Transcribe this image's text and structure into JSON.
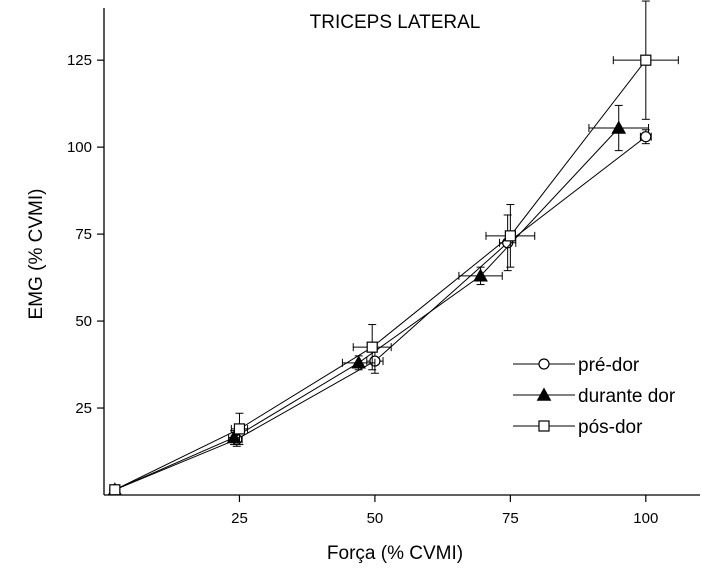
{
  "chart_data": {
    "type": "line",
    "title": "TRICEPS LATERAL",
    "xlabel": "Força (% CVMI)",
    "ylabel": "EMG (% CVMI)",
    "xlim": [
      0,
      110
    ],
    "ylim": [
      0,
      140
    ],
    "xticks": [
      25,
      50,
      75,
      100
    ],
    "yticks": [
      25,
      50,
      75,
      100,
      125
    ],
    "legend_position": "lower-right",
    "grid": false,
    "series": [
      {
        "name": "pré-dor",
        "marker": "open-circle",
        "points": [
          {
            "x": 2,
            "y": 1.5,
            "xerr": 0.5,
            "yerr": 1
          },
          {
            "x": 24.5,
            "y": 16,
            "xerr": 1,
            "yerr": 2
          },
          {
            "x": 50,
            "y": 38.5,
            "xerr": 1.5,
            "yerr": 3.5
          },
          {
            "x": 74.5,
            "y": 72.5,
            "xerr": 1.5,
            "yerr": 8
          },
          {
            "x": 100,
            "y": 103,
            "xerr": 1,
            "yerr": 2
          }
        ]
      },
      {
        "name": "durante dor",
        "marker": "filled-triangle",
        "points": [
          {
            "x": 2,
            "y": 1.5,
            "xerr": 0.5,
            "yerr": 1
          },
          {
            "x": 24,
            "y": 16.5,
            "xerr": 1,
            "yerr": 2
          },
          {
            "x": 47,
            "y": 38,
            "xerr": 3,
            "yerr": 2
          },
          {
            "x": 69.5,
            "y": 63,
            "xerr": 4,
            "yerr": 2.5
          },
          {
            "x": 95,
            "y": 105.5,
            "xerr": 5.5,
            "yerr": 6.5
          }
        ]
      },
      {
        "name": "pós-dor",
        "marker": "open-square",
        "points": [
          {
            "x": 2,
            "y": 1.5,
            "xerr": 0.5,
            "yerr": 1
          },
          {
            "x": 25,
            "y": 19,
            "xerr": 1.5,
            "yerr": 4.5
          },
          {
            "x": 49.5,
            "y": 42.5,
            "xerr": 3.5,
            "yerr": 6.5
          },
          {
            "x": 75,
            "y": 74.5,
            "xerr": 4.5,
            "yerr": 9
          },
          {
            "x": 100,
            "y": 125,
            "xerr": 6,
            "yerr": 17
          }
        ]
      }
    ]
  }
}
